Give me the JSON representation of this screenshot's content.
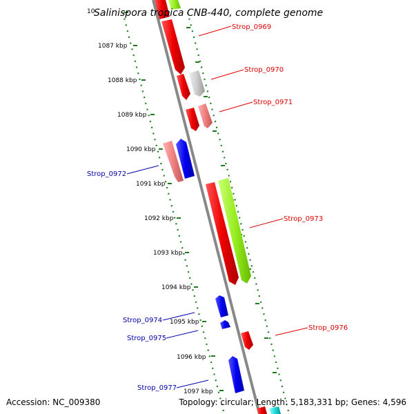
{
  "title": "Salinispora tropica CNB-440, complete genome",
  "title_cut_label": "10",
  "accession": "Accession: NC_009380",
  "topology": "Topology: circular; Length: 5,183,331 bp; Genes: 4,596",
  "kbp_labels": [
    "1087 kbp",
    "1088 kbp",
    "1089 kbp",
    "1090 kbp",
    "1091 kbp",
    "1092 kbp",
    "1093 kbp",
    "1094 kbp",
    "1095 kbp",
    "1096 kbp",
    "1097 kbp"
  ],
  "genes": [
    {
      "name": "Strop_0969",
      "strand": "forward",
      "color": "#ee0000"
    },
    {
      "name": "Strop_0970",
      "strand": "forward",
      "color": "#ee0000"
    },
    {
      "name": "Strop_0971",
      "strand": "forward",
      "color": "#ee0000"
    },
    {
      "name": "Strop_0972",
      "strand": "reverse",
      "color": "#0000aa"
    },
    {
      "name": "Strop_0973",
      "strand": "forward",
      "color": "#ee0000"
    },
    {
      "name": "Strop_0974",
      "strand": "reverse",
      "color": "#0000aa"
    },
    {
      "name": "Strop_0975",
      "strand": "reverse",
      "color": "#0000aa"
    },
    {
      "name": "Strop_0976",
      "strand": "forward",
      "color": "#ee0000"
    },
    {
      "name": "Strop_0977",
      "strand": "reverse",
      "color": "#0000aa"
    }
  ],
  "colors": {
    "backbone": "#888888",
    "tick": "#1a7a1a",
    "forward_gene": "#ee0000",
    "reverse_gene": "#0000ee",
    "forward_label": "#dd0000",
    "reverse_label": "#0000aa",
    "pink_gene": "#f08080",
    "grey_gene": "#cccccc",
    "green_gene": "#99ee22",
    "cyan_gene": "#22dddd"
  }
}
